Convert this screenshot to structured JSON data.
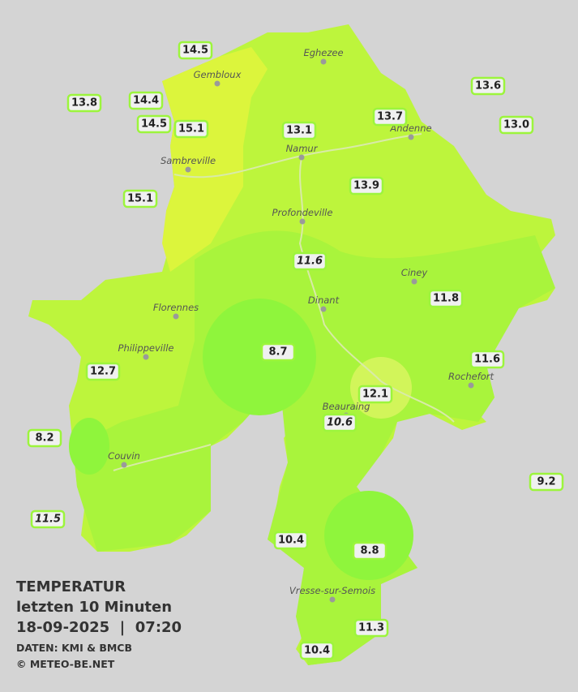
{
  "legend": {
    "title": "TEMPERATUR",
    "subtitle": "letzten 10 Minuten",
    "datetime": "18-09-2025  |  07:20",
    "source": "DATEN: KMI & BMCB",
    "copyright": "© METEO-BE.NET"
  },
  "towns": [
    {
      "name": "Eghezee"
    },
    {
      "name": "Gembloux"
    },
    {
      "name": "Andenne"
    },
    {
      "name": "Namur"
    },
    {
      "name": "Sambreville"
    },
    {
      "name": "Profondeville"
    },
    {
      "name": "Ciney"
    },
    {
      "name": "Dinant"
    },
    {
      "name": "Florennes"
    },
    {
      "name": "Philippeville"
    },
    {
      "name": "Rochefort"
    },
    {
      "name": "Beauraing"
    },
    {
      "name": "Couvin"
    },
    {
      "name": "Vresse-sur-Semois"
    }
  ],
  "stations": [
    {
      "label": "14.5"
    },
    {
      "label": "13.8"
    },
    {
      "label": "14.4"
    },
    {
      "label": "14.5"
    },
    {
      "label": "15.1"
    },
    {
      "label": "13.1"
    },
    {
      "label": "13.7"
    },
    {
      "label": "13.6"
    },
    {
      "label": "13.0"
    },
    {
      "label": "15.1"
    },
    {
      "label": "13.9"
    },
    {
      "label": "11.6",
      "italic": true
    },
    {
      "label": "11.8"
    },
    {
      "label": "8.7"
    },
    {
      "label": "12.7"
    },
    {
      "label": "11.6"
    },
    {
      "label": "12.1"
    },
    {
      "label": "10.6",
      "italic": true
    },
    {
      "label": "8.2"
    },
    {
      "label": "9.2"
    },
    {
      "label": "11.5",
      "italic": true
    },
    {
      "label": "10.4"
    },
    {
      "label": "8.8"
    },
    {
      "label": "11.3"
    },
    {
      "label": "10.4"
    }
  ]
}
